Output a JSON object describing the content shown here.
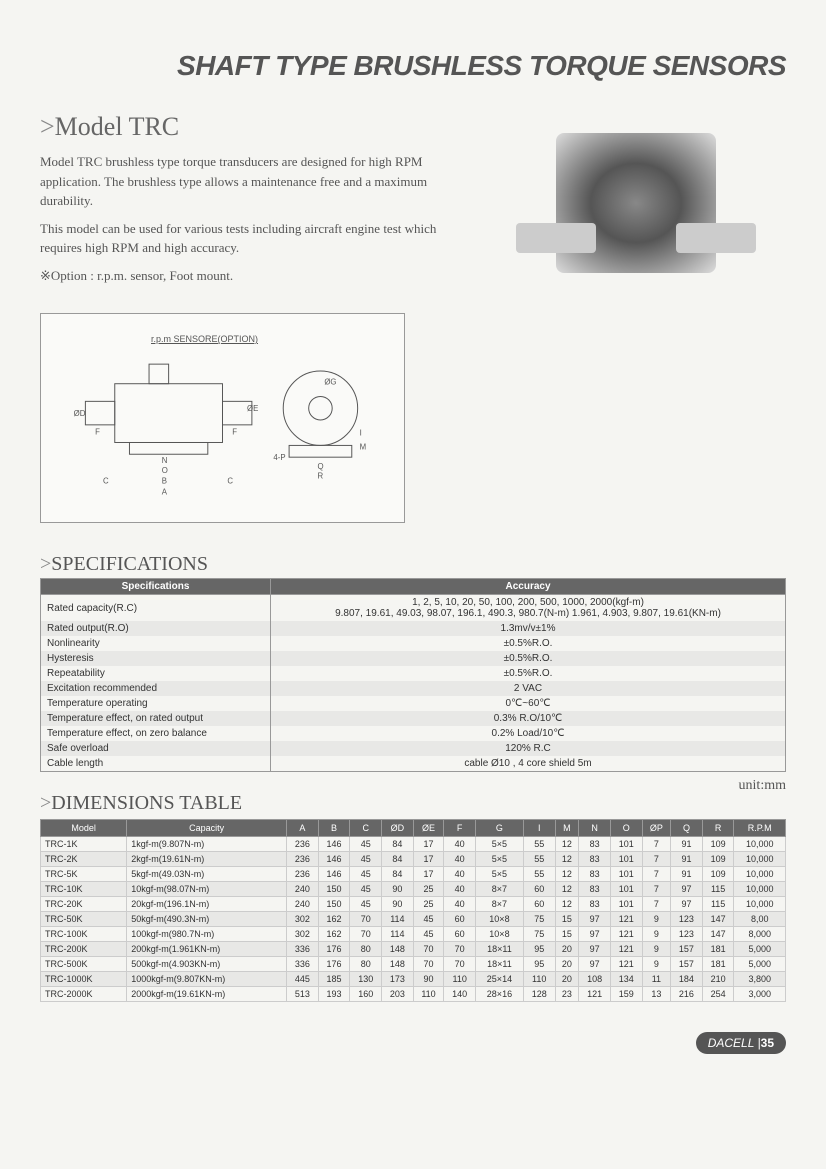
{
  "header": {
    "title": "SHAFT TYPE BRUSHLESS TORQUE SENSORS"
  },
  "model": {
    "prefix": ">",
    "name": "Model TRC",
    "desc1": "Model TRC brushless type torque transducers are designed for high RPM application. The brushless type allows a maintenance free and a maximum durability.",
    "desc2": "This model can be used for various tests including aircraft engine test which requires high RPM and high accuracy.",
    "option": "※Option : r.p.m. sensor, Foot mount."
  },
  "diagram": {
    "sensor_label": "r.p.m SENSORE(OPTION)",
    "labels": [
      "ØD",
      "ØE",
      "F",
      "F",
      "N",
      "O",
      "C",
      "B",
      "C",
      "A",
      "ØG",
      "4-P",
      "Q",
      "R",
      "M",
      "I"
    ]
  },
  "specs": {
    "title": "SPECIFICATIONS",
    "header": {
      "col1": "Specifications",
      "col2": "Accuracy"
    },
    "rows": [
      {
        "k": "Rated capacity(R.C)",
        "v": "1, 2, 5, 10, 20, 50, 100, 200, 500, 1000, 2000(kgf-m)\n9.807, 19.61, 49.03, 98.07, 196.1, 490.3, 980.7(N-m) 1.961, 4.903, 9.807, 19.61(KN-m)"
      },
      {
        "k": "Rated output(R.O)",
        "v": "1.3mv/v±1%"
      },
      {
        "k": "Nonlinearity",
        "v": "±0.5%R.O."
      },
      {
        "k": "Hysteresis",
        "v": "±0.5%R.O."
      },
      {
        "k": "Repeatability",
        "v": "±0.5%R.O."
      },
      {
        "k": "Excitation recommended",
        "v": "2 VAC"
      },
      {
        "k": "Temperature operating",
        "v": "0℃~60℃"
      },
      {
        "k": "Temperature effect, on rated output",
        "v": "0.3% R.O/10℃"
      },
      {
        "k": "Temperature effect, on zero balance",
        "v": "0.2% Load/10℃"
      },
      {
        "k": "Safe overload",
        "v": "120% R.C"
      },
      {
        "k": "Cable length",
        "v": "cable Ø10 , 4 core shield 5m"
      }
    ]
  },
  "dims": {
    "title": "DIMENSIONS TABLE",
    "unit": "unit:mm",
    "columns": [
      "Model",
      "Capacity",
      "A",
      "B",
      "C",
      "ØD",
      "ØE",
      "F",
      "G",
      "I",
      "M",
      "N",
      "O",
      "ØP",
      "Q",
      "R",
      "R.P.M"
    ],
    "rows": [
      [
        "TRC-1K",
        "1kgf-m(9.807N-m)",
        "236",
        "146",
        "45",
        "84",
        "17",
        "40",
        "5×5",
        "55",
        "12",
        "83",
        "101",
        "7",
        "91",
        "109",
        "10,000"
      ],
      [
        "TRC-2K",
        "2kgf-m(19.61N-m)",
        "236",
        "146",
        "45",
        "84",
        "17",
        "40",
        "5×5",
        "55",
        "12",
        "83",
        "101",
        "7",
        "91",
        "109",
        "10,000"
      ],
      [
        "TRC-5K",
        "5kgf-m(49.03N-m)",
        "236",
        "146",
        "45",
        "84",
        "17",
        "40",
        "5×5",
        "55",
        "12",
        "83",
        "101",
        "7",
        "91",
        "109",
        "10,000"
      ],
      [
        "TRC-10K",
        "10kgf-m(98.07N-m)",
        "240",
        "150",
        "45",
        "90",
        "25",
        "40",
        "8×7",
        "60",
        "12",
        "83",
        "101",
        "7",
        "97",
        "115",
        "10,000"
      ],
      [
        "TRC-20K",
        "20kgf-m(196.1N-m)",
        "240",
        "150",
        "45",
        "90",
        "25",
        "40",
        "8×7",
        "60",
        "12",
        "83",
        "101",
        "7",
        "97",
        "115",
        "10,000"
      ],
      [
        "TRC-50K",
        "50kgf-m(490.3N-m)",
        "302",
        "162",
        "70",
        "114",
        "45",
        "60",
        "10×8",
        "75",
        "15",
        "97",
        "121",
        "9",
        "123",
        "147",
        "8,00"
      ],
      [
        "TRC-100K",
        "100kgf-m(980.7N-m)",
        "302",
        "162",
        "70",
        "114",
        "45",
        "60",
        "10×8",
        "75",
        "15",
        "97",
        "121",
        "9",
        "123",
        "147",
        "8,000"
      ],
      [
        "TRC-200K",
        "200kgf-m(1.961KN-m)",
        "336",
        "176",
        "80",
        "148",
        "70",
        "70",
        "18×11",
        "95",
        "20",
        "97",
        "121",
        "9",
        "157",
        "181",
        "5,000"
      ],
      [
        "TRC-500K",
        "500kgf-m(4.903KN-m)",
        "336",
        "176",
        "80",
        "148",
        "70",
        "70",
        "18×11",
        "95",
        "20",
        "97",
        "121",
        "9",
        "157",
        "181",
        "5,000"
      ],
      [
        "TRC-1000K",
        "1000kgf-m(9.807KN-m)",
        "445",
        "185",
        "130",
        "173",
        "90",
        "110",
        "25×14",
        "110",
        "20",
        "108",
        "134",
        "11",
        "184",
        "210",
        "3,800"
      ],
      [
        "TRC-2000K",
        "2000kgf-m(19.61KN-m)",
        "513",
        "193",
        "160",
        "203",
        "110",
        "140",
        "28×16",
        "128",
        "23",
        "121",
        "159",
        "13",
        "216",
        "254",
        "3,000"
      ]
    ]
  },
  "footer": {
    "brand": "DACELL",
    "page": "35"
  }
}
